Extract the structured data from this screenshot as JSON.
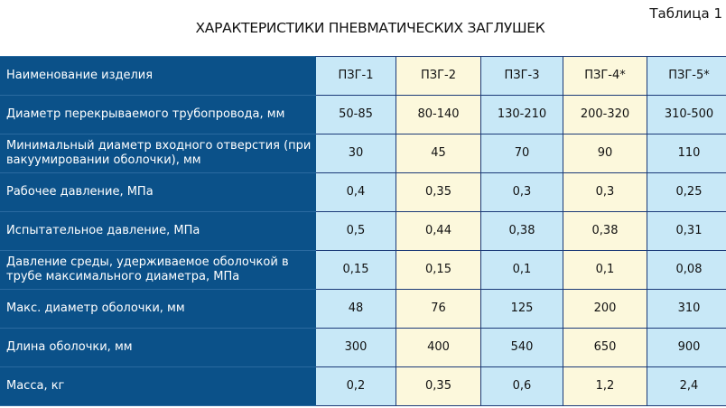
{
  "table_number": "Таблица 1",
  "title": "ХАРАКТЕРИСТИКИ ПНЕВМАТИЧЕСКИХ ЗАГЛУШЕК",
  "colors": {
    "label_bg": "#0b5189",
    "cell_blue": "#c8e8f7",
    "cell_yellow": "#fcf8dc",
    "border": "#1b3a78"
  },
  "rows": [
    {
      "label": "Наименование изделия",
      "values": [
        "ПЗГ-1",
        "ПЗГ-2",
        "ПЗГ-3",
        "ПЗГ-4*",
        "ПЗГ-5*"
      ]
    },
    {
      "label": "Диаметр перекрываемого трубопровода, мм",
      "values": [
        "50-85",
        "80-140",
        "130-210",
        "200-320",
        "310-500"
      ]
    },
    {
      "label": "Минимальный диаметр входного отверстия (при вакуумировании оболочки), мм",
      "values": [
        "30",
        "45",
        "70",
        "90",
        "110"
      ]
    },
    {
      "label": "Рабочее давление, МПа",
      "values": [
        "0,4",
        "0,35",
        "0,3",
        "0,3",
        "0,25"
      ]
    },
    {
      "label": "Испытательное давление, МПа",
      "values": [
        "0,5",
        "0,44",
        "0,38",
        "0,38",
        "0,31"
      ]
    },
    {
      "label": "Давление среды, удерживаемое оболочкой в трубе максимального диаметра, МПа",
      "values": [
        "0,15",
        "0,15",
        "0,1",
        "0,1",
        "0,08"
      ]
    },
    {
      "label": "Макс. диаметр оболочки, мм",
      "values": [
        "48",
        "76",
        "125",
        "200",
        "310"
      ]
    },
    {
      "label": "Длина оболочки, мм",
      "values": [
        "300",
        "400",
        "540",
        "650",
        "900"
      ]
    },
    {
      "label": "Масса, кг",
      "values": [
        "0,2",
        "0,35",
        "0,6",
        "1,2",
        "2,4"
      ]
    }
  ]
}
